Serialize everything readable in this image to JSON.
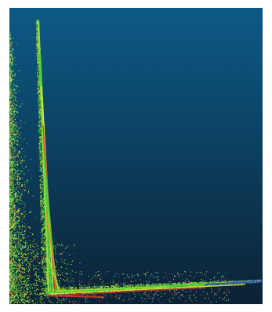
{
  "viewer": {
    "background_top": "#0d5a86",
    "background_bottom": "#0b2235"
  },
  "point_cloud": {
    "palette": [
      "#1a8c3a",
      "#4ad23c",
      "#9be03a",
      "#e7e53a",
      "#f08a2a",
      "#d63a2a",
      "#2f4fc8",
      "#c9d6e6"
    ],
    "dominant_colors": [
      "#4ad23c",
      "#e7e53a",
      "#d63a2a"
    ]
  }
}
